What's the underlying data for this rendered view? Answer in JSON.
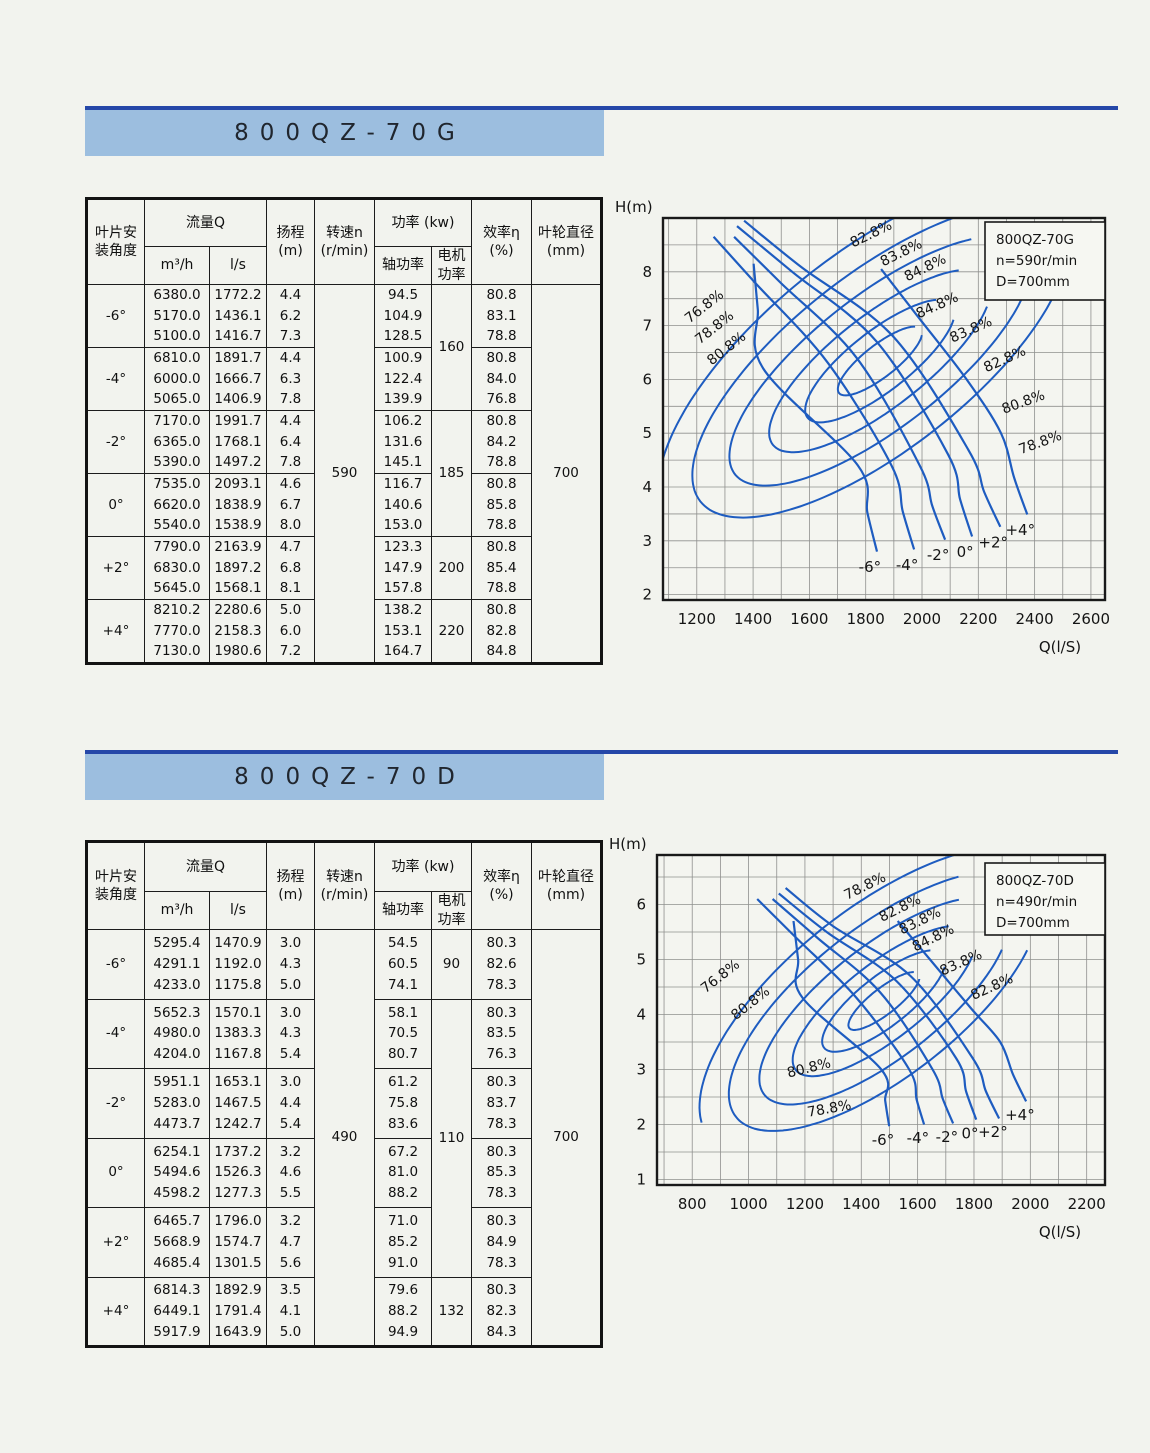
{
  "sections": [
    {
      "title": "800QZ-70G",
      "table": {
        "header": {
          "angle": [
            "叶片安",
            "装角度"
          ],
          "flow": "流量Q",
          "m3h": "m³/h",
          "ls": "l/s",
          "head": [
            "扬程",
            "(m)"
          ],
          "speed": [
            "转速n",
            "(r/min)"
          ],
          "power": "功率 (kw)",
          "shaft": "轴功率",
          "motor": [
            "电机",
            "功率"
          ],
          "eff": [
            "效率η",
            "(%)"
          ],
          "dia": [
            "叶轮直径",
            "(mm)"
          ]
        },
        "speed_value": "590",
        "diameter_value": "700",
        "motor_cells": [
          {
            "value": "160",
            "rows": 2
          },
          {
            "value": "185",
            "rows": 2
          },
          {
            "value": "200",
            "rows": 1
          },
          {
            "value": "220",
            "rows": 1
          }
        ],
        "rows": [
          {
            "angle": "-6°",
            "m3h": [
              "6380.0",
              "5170.0",
              "5100.0"
            ],
            "ls": [
              "1772.2",
              "1436.1",
              "1416.7"
            ],
            "head": [
              "4.4",
              "6.2",
              "7.3"
            ],
            "shaft": [
              "94.5",
              "104.9",
              "128.5"
            ],
            "eff": [
              "80.8",
              "83.1",
              "78.8"
            ]
          },
          {
            "angle": "-4°",
            "m3h": [
              "6810.0",
              "6000.0",
              "5065.0"
            ],
            "ls": [
              "1891.7",
              "1666.7",
              "1406.9"
            ],
            "head": [
              "4.4",
              "6.3",
              "7.8"
            ],
            "shaft": [
              "100.9",
              "122.4",
              "139.9"
            ],
            "eff": [
              "80.8",
              "84.0",
              "76.8"
            ]
          },
          {
            "angle": "-2°",
            "m3h": [
              "7170.0",
              "6365.0",
              "5390.0"
            ],
            "ls": [
              "1991.7",
              "1768.1",
              "1497.2"
            ],
            "head": [
              "4.4",
              "6.4",
              "7.8"
            ],
            "shaft": [
              "106.2",
              "131.6",
              "145.1"
            ],
            "eff": [
              "80.8",
              "84.2",
              "78.8"
            ]
          },
          {
            "angle": "0°",
            "m3h": [
              "7535.0",
              "6620.0",
              "5540.0"
            ],
            "ls": [
              "2093.1",
              "1838.9",
              "1538.9"
            ],
            "head": [
              "4.6",
              "6.7",
              "8.0"
            ],
            "shaft": [
              "116.7",
              "140.6",
              "153.0"
            ],
            "eff": [
              "80.8",
              "85.8",
              "78.8"
            ]
          },
          {
            "angle": "+2°",
            "m3h": [
              "7790.0",
              "6830.0",
              "5645.0"
            ],
            "ls": [
              "2163.9",
              "1897.2",
              "1568.1"
            ],
            "head": [
              "4.7",
              "6.8",
              "8.1"
            ],
            "shaft": [
              "123.3",
              "147.9",
              "157.8"
            ],
            "eff": [
              "80.8",
              "85.4",
              "78.8"
            ]
          },
          {
            "angle": "+4°",
            "m3h": [
              "8210.2",
              "7770.0",
              "7130.0"
            ],
            "ls": [
              "2280.6",
              "2158.3",
              "1980.6"
            ],
            "head": [
              "5.0",
              "6.0",
              "7.2"
            ],
            "shaft": [
              "138.2",
              "153.1",
              "164.7"
            ],
            "eff": [
              "80.8",
              "82.8",
              "84.8"
            ]
          }
        ]
      }
    },
    {
      "title": "800QZ-70D",
      "table": {
        "header": {
          "angle": [
            "叶片安",
            "装角度"
          ],
          "flow": "流量Q",
          "m3h": "m³/h",
          "ls": "l/s",
          "head": [
            "扬程",
            "(m)"
          ],
          "speed": [
            "转速n",
            "(r/min)"
          ],
          "power": "功率 (kw)",
          "shaft": "轴功率",
          "motor": [
            "电机",
            "功率"
          ],
          "eff": [
            "效率η",
            "(%)"
          ],
          "dia": [
            "叶轮直径",
            "(mm)"
          ]
        },
        "speed_value": "490",
        "diameter_value": "700",
        "motor_cells": [
          {
            "value": "90",
            "rows": 1
          },
          {
            "value": "110",
            "rows": 4
          },
          {
            "value": "132",
            "rows": 1
          }
        ],
        "rows": [
          {
            "angle": "-6°",
            "m3h": [
              "5295.4",
              "4291.1",
              "4233.0"
            ],
            "ls": [
              "1470.9",
              "1192.0",
              "1175.8"
            ],
            "head": [
              "3.0",
              "4.3",
              "5.0"
            ],
            "shaft": [
              "54.5",
              "60.5",
              "74.1"
            ],
            "eff": [
              "80.3",
              "82.6",
              "78.3"
            ]
          },
          {
            "angle": "-4°",
            "m3h": [
              "5652.3",
              "4980.0",
              "4204.0"
            ],
            "ls": [
              "1570.1",
              "1383.3",
              "1167.8"
            ],
            "head": [
              "3.0",
              "4.3",
              "5.4"
            ],
            "shaft": [
              "58.1",
              "70.5",
              "80.7"
            ],
            "eff": [
              "80.3",
              "83.5",
              "76.3"
            ]
          },
          {
            "angle": "-2°",
            "m3h": [
              "5951.1",
              "5283.0",
              "4473.7"
            ],
            "ls": [
              "1653.1",
              "1467.5",
              "1242.7"
            ],
            "head": [
              "3.0",
              "4.4",
              "5.4"
            ],
            "shaft": [
              "61.2",
              "75.8",
              "83.6"
            ],
            "eff": [
              "80.3",
              "83.7",
              "78.3"
            ]
          },
          {
            "angle": "0°",
            "m3h": [
              "6254.1",
              "5494.6",
              "4598.2"
            ],
            "ls": [
              "1737.2",
              "1526.3",
              "1277.3"
            ],
            "head": [
              "3.2",
              "4.6",
              "5.5"
            ],
            "shaft": [
              "67.2",
              "81.0",
              "88.2"
            ],
            "eff": [
              "80.3",
              "85.3",
              "78.3"
            ]
          },
          {
            "angle": "+2°",
            "m3h": [
              "6465.7",
              "5668.9",
              "4685.4"
            ],
            "ls": [
              "1796.0",
              "1574.7",
              "1301.5"
            ],
            "head": [
              "3.2",
              "4.7",
              "5.6"
            ],
            "shaft": [
              "71.0",
              "85.2",
              "91.0"
            ],
            "eff": [
              "80.3",
              "84.9",
              "78.3"
            ]
          },
          {
            "angle": "+4°",
            "m3h": [
              "6814.3",
              "6449.1",
              "5917.9"
            ],
            "ls": [
              "1892.9",
              "1791.4",
              "1643.9"
            ],
            "head": [
              "3.5",
              "4.1",
              "5.0"
            ],
            "shaft": [
              "79.6",
              "88.2",
              "94.9"
            ],
            "eff": [
              "80.3",
              "82.3",
              "84.3"
            ]
          }
        ]
      }
    }
  ],
  "colors": {
    "rule_blue": "#2547a8",
    "titlebar_blue": "#9cbedf",
    "curve_blue": "#1e5cc0",
    "grid_gray": "#8f908e",
    "border_black": "#191919"
  },
  "chart_data": [
    {
      "type": "line",
      "title": "800QZ-70G",
      "xlabel": "Q(l/S)",
      "ylabel": "H(m)",
      "xlim": [
        1080,
        2650
      ],
      "ylim": [
        1.9,
        9.0
      ],
      "xticks": [
        1200,
        1400,
        1600,
        1800,
        2000,
        2200,
        2400,
        2600
      ],
      "yticks": [
        2,
        3,
        4,
        5,
        6,
        7,
        8
      ],
      "grid": {
        "on": true,
        "minor_x": 100,
        "minor_y": 0.5
      },
      "legend": {
        "position": "top-right",
        "lines": [
          "800QZ-70G",
          "n=590r/min",
          "D=700mm"
        ]
      },
      "series": [
        {
          "name": "-6°",
          "points": [
            [
              1772.2,
              4.4
            ],
            [
              1436.1,
              6.2
            ],
            [
              1416.7,
              7.3
            ]
          ]
        },
        {
          "name": "-4°",
          "points": [
            [
              1891.7,
              4.4
            ],
            [
              1666.7,
              6.3
            ],
            [
              1406.9,
              7.8
            ]
          ]
        },
        {
          "name": "-2°",
          "points": [
            [
              1991.7,
              4.4
            ],
            [
              1768.1,
              6.4
            ],
            [
              1497.2,
              7.8
            ]
          ]
        },
        {
          "name": "0°",
          "points": [
            [
              2093.1,
              4.6
            ],
            [
              1838.9,
              6.7
            ],
            [
              1538.9,
              8.0
            ]
          ]
        },
        {
          "name": "+2°",
          "points": [
            [
              2163.9,
              4.7
            ],
            [
              1897.2,
              6.8
            ],
            [
              1568.1,
              8.1
            ]
          ]
        },
        {
          "name": "+4°",
          "points": [
            [
              2280.6,
              5.0
            ],
            [
              2158.3,
              6.0
            ],
            [
              1980.6,
              7.2
            ]
          ]
        }
      ],
      "efficiency_levels": [
        "84.8%",
        "83.8%",
        "82.8%",
        "80.8%",
        "78.8%",
        "76.8%"
      ],
      "efficiency_labels": [
        {
          "text": "76.8%",
          "x": 1236,
          "y": 7.29,
          "rot": -38
        },
        {
          "text": "78.8%",
          "x": 1272,
          "y": 6.9,
          "rot": -38
        },
        {
          "text": "80.8%",
          "x": 1315,
          "y": 6.51,
          "rot": -38
        },
        {
          "text": "82.8%",
          "x": 1826,
          "y": 8.63,
          "rot": -26
        },
        {
          "text": "83.8%",
          "x": 1933,
          "y": 8.28,
          "rot": -26
        },
        {
          "text": "84.8%",
          "x": 2018,
          "y": 8.0,
          "rot": -26
        },
        {
          "text": "84.8%",
          "x": 2060,
          "y": 7.3,
          "rot": -24
        },
        {
          "text": "83.8%",
          "x": 2180,
          "y": 6.85,
          "rot": -24
        },
        {
          "text": "82.8%",
          "x": 2300,
          "y": 6.3,
          "rot": -24
        },
        {
          "text": "80.8%",
          "x": 2365,
          "y": 5.5,
          "rot": -20
        },
        {
          "text": "78.8%",
          "x": 2425,
          "y": 4.75,
          "rot": -20
        }
      ],
      "angle_labels": [
        {
          "text": "-6°",
          "x": 1815,
          "y": 2.42
        },
        {
          "text": "-4°",
          "x": 1947,
          "y": 2.46
        },
        {
          "text": "-2°",
          "x": 2057,
          "y": 2.64
        },
        {
          "text": "0°",
          "x": 2153,
          "y": 2.7
        },
        {
          "text": "+2°",
          "x": 2253,
          "y": 2.88
        },
        {
          "text": "+4°",
          "x": 2349,
          "y": 3.11
        }
      ]
    },
    {
      "type": "line",
      "title": "800QZ-70D",
      "xlabel": "Q(l/S)",
      "ylabel": "H(m)",
      "xlim": [
        675,
        2265
      ],
      "ylim": [
        0.9,
        6.9
      ],
      "xticks": [
        800,
        1000,
        1200,
        1400,
        1600,
        1800,
        2000,
        2200
      ],
      "yticks": [
        1,
        2,
        3,
        4,
        5,
        6
      ],
      "grid": {
        "on": true,
        "minor_x": 100,
        "minor_y": 0.5
      },
      "legend": {
        "position": "top-right",
        "lines": [
          "800QZ-70D",
          "n=490r/min",
          "D=700mm"
        ]
      },
      "series": [
        {
          "name": "-6°",
          "points": [
            [
              1470.9,
              3.0
            ],
            [
              1192.0,
              4.3
            ],
            [
              1175.8,
              5.0
            ]
          ]
        },
        {
          "name": "-4°",
          "points": [
            [
              1570.1,
              3.0
            ],
            [
              1383.3,
              4.3
            ],
            [
              1167.8,
              5.4
            ]
          ]
        },
        {
          "name": "-2°",
          "points": [
            [
              1653.1,
              3.0
            ],
            [
              1467.5,
              4.4
            ],
            [
              1242.7,
              5.4
            ]
          ]
        },
        {
          "name": "0°",
          "points": [
            [
              1737.2,
              3.2
            ],
            [
              1526.3,
              4.6
            ],
            [
              1277.3,
              5.5
            ]
          ]
        },
        {
          "name": "+2°",
          "points": [
            [
              1796.0,
              3.2
            ],
            [
              1574.7,
              4.7
            ],
            [
              1301.5,
              5.6
            ]
          ]
        },
        {
          "name": "+4°",
          "points": [
            [
              1892.9,
              3.5
            ],
            [
              1791.4,
              4.1
            ],
            [
              1643.9,
              5.0
            ]
          ]
        }
      ],
      "efficiency_levels": [
        "84.8%",
        "83.8%",
        "82.8%",
        "80.8%",
        "78.8%",
        "76.8%"
      ],
      "efficiency_labels": [
        {
          "text": "78.8%",
          "x": 1420,
          "y": 6.26,
          "rot": -26
        },
        {
          "text": "82.8%",
          "x": 1544,
          "y": 5.86,
          "rot": -26
        },
        {
          "text": "83.8%",
          "x": 1615,
          "y": 5.63,
          "rot": -26
        },
        {
          "text": "84.8%",
          "x": 1662,
          "y": 5.32,
          "rot": -26
        },
        {
          "text": "76.8%",
          "x": 909,
          "y": 4.63,
          "rot": -38
        },
        {
          "text": "80.8%",
          "x": 1016,
          "y": 4.14,
          "rot": -38
        },
        {
          "text": "83.8%",
          "x": 1760,
          "y": 4.87,
          "rot": -24
        },
        {
          "text": "82.8%",
          "x": 1870,
          "y": 4.43,
          "rot": -24
        },
        {
          "text": "80.8%",
          "x": 1218,
          "y": 2.95,
          "rot": -14
        },
        {
          "text": "78.8%",
          "x": 1289,
          "y": 2.21,
          "rot": -10
        }
      ],
      "angle_labels": [
        {
          "text": "-6°",
          "x": 1477,
          "y": 1.63
        },
        {
          "text": "-4°",
          "x": 1601,
          "y": 1.66
        },
        {
          "text": "-2°",
          "x": 1704,
          "y": 1.68
        },
        {
          "text": "0°",
          "x": 1786,
          "y": 1.75
        },
        {
          "text": "+2°",
          "x": 1867,
          "y": 1.77
        },
        {
          "text": "+4°",
          "x": 1963,
          "y": 2.08
        }
      ]
    }
  ]
}
